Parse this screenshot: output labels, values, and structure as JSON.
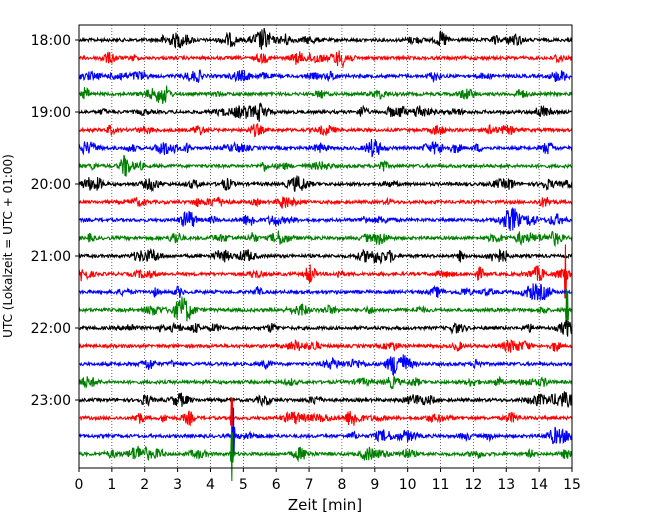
{
  "chart_data": {
    "type": "line",
    "title": "",
    "xlabel": "Zeit  [min]",
    "ylabel": "UTC (Lokalzeit = UTC + 01:00)",
    "xlim": [
      0,
      15
    ],
    "x_ticks": [
      "0",
      "1",
      "2",
      "3",
      "4",
      "5",
      "6",
      "7",
      "8",
      "9",
      "10",
      "11",
      "12",
      "13",
      "14",
      "15"
    ],
    "y_ticks": [
      "18:00",
      "19:00",
      "20:00",
      "21:00",
      "22:00",
      "23:00"
    ],
    "grid": "vertical-dotted",
    "trace_colors": [
      "#000000",
      "#ff0000",
      "#0000ff",
      "#008000"
    ],
    "rows": [
      "18:00",
      "18:15",
      "18:30",
      "18:45",
      "19:00",
      "19:15",
      "19:30",
      "19:45",
      "20:00",
      "20:15",
      "20:30",
      "20:45",
      "21:00",
      "21:15",
      "21:30",
      "21:45",
      "22:00",
      "22:15",
      "22:30",
      "22:45",
      "23:00",
      "23:15",
      "23:30",
      "23:45"
    ],
    "events": [
      {
        "row": "21:15",
        "minute": 14.8,
        "amplitude": "large"
      },
      {
        "row": "21:45",
        "minute": 14.85,
        "amplitude": "large"
      },
      {
        "row": "23:15",
        "minute": 4.65,
        "amplitude": "large"
      },
      {
        "row": "23:30",
        "minute": 4.7,
        "amplitude": "large"
      },
      {
        "row": "23:45",
        "minute": 4.65,
        "amplitude": "large"
      }
    ]
  }
}
